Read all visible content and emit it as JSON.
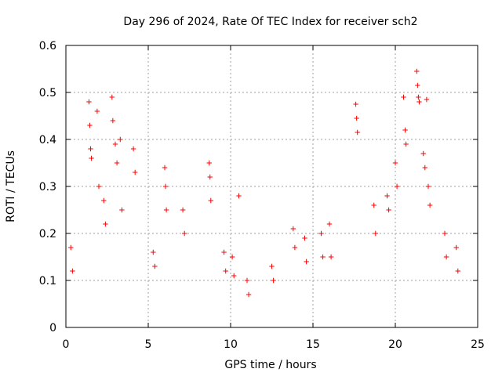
{
  "chart_data": {
    "type": "scatter",
    "title": "Day 296 of 2024, Rate Of TEC Index for receiver sch2",
    "xlabel": "GPS time / hours",
    "ylabel": "ROTI / TECUs",
    "xlim": [
      0,
      25
    ],
    "ylim": [
      0,
      0.6
    ],
    "xticks": [
      0,
      5,
      10,
      15,
      20,
      25
    ],
    "yticks": [
      0,
      0.1,
      0.2,
      0.3,
      0.4,
      0.5,
      0.6
    ],
    "xtick_labels": [
      "0",
      "5",
      "10",
      "15",
      "20",
      "25"
    ],
    "ytick_labels": [
      "0",
      "0.1",
      "0.2",
      "0.3",
      "0.4",
      "0.5",
      "0.6"
    ],
    "grid": true,
    "marker": "+",
    "color": "#ff0000",
    "series": [
      {
        "x": [
          1.4,
          1.45,
          1.5,
          1.55,
          1.9,
          2.0,
          2.8,
          2.85,
          3.0,
          3.1,
          3.3,
          3.4,
          4.1,
          4.2,
          6.0,
          6.05,
          6.1,
          8.7,
          8.75,
          8.8,
          10.5,
          17.6,
          17.65,
          17.7,
          20.5,
          20.6,
          20.65,
          21.3,
          21.35,
          21.4,
          21.45,
          21.9,
          21.7,
          21.8,
          22.0,
          22.1,
          20.0,
          20.1,
          19.5,
          19.6,
          18.7,
          18.8,
          16.0,
          16.1,
          13.8,
          13.9,
          12.5,
          12.6,
          11.0,
          11.1,
          9.6,
          9.7,
          7.1,
          7.2,
          5.3,
          5.4,
          0.3,
          0.4,
          23.7,
          23.8,
          23.0,
          23.1,
          15.5,
          15.6,
          14.5,
          14.6,
          10.1,
          10.2,
          2.3,
          2.4
        ],
        "y": [
          0.48,
          0.43,
          0.38,
          0.36,
          0.46,
          0.3,
          0.49,
          0.44,
          0.39,
          0.35,
          0.4,
          0.25,
          0.38,
          0.33,
          0.34,
          0.3,
          0.25,
          0.35,
          0.32,
          0.27,
          0.28,
          0.475,
          0.445,
          0.415,
          0.49,
          0.42,
          0.39,
          0.545,
          0.515,
          0.49,
          0.48,
          0.485,
          0.37,
          0.34,
          0.3,
          0.26,
          0.35,
          0.3,
          0.28,
          0.25,
          0.26,
          0.2,
          0.22,
          0.15,
          0.21,
          0.17,
          0.13,
          0.1,
          0.1,
          0.07,
          0.16,
          0.12,
          0.25,
          0.2,
          0.16,
          0.13,
          0.17,
          0.12,
          0.17,
          0.12,
          0.2,
          0.15,
          0.2,
          0.15,
          0.19,
          0.14,
          0.15,
          0.11,
          0.27,
          0.22
        ]
      }
    ]
  }
}
